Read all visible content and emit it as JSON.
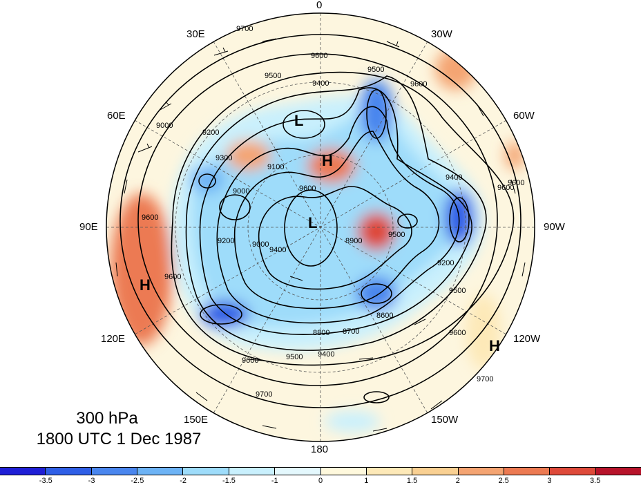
{
  "projection": "north-polar-stereographic",
  "field": {
    "level": "300 hPa",
    "time": "1800 UTC 1 Dec 1987"
  },
  "longitude_labels": {
    "lon_0": "0",
    "lon_30w": "30W",
    "lon_60w": "60W",
    "lon_90w": "90W",
    "lon_120w": "120W",
    "lon_150w": "150W",
    "lon_180": "180",
    "lon_150e": "150E",
    "lon_120e": "120E",
    "lon_90e": "90E",
    "lon_60e": "60E",
    "lon_30e": "30E"
  },
  "contour_labels": {
    "c1": "9700",
    "c2": "9600",
    "c3": "9500",
    "c4": "9400",
    "c5": "9500",
    "c6": "9600",
    "c7": "9600",
    "c8": "9400",
    "c9": "9400",
    "c10": "9300",
    "c11": "9000",
    "c12": "9200",
    "c13": "9000",
    "c14": "9100",
    "c15": "9600",
    "c16": "9600",
    "c17": "9000",
    "c18": "9200",
    "c19": "9500",
    "c20": "9600",
    "c21": "9700",
    "c22": "9600",
    "c23": "9500",
    "c24": "9400",
    "c25": "8800",
    "c26": "8700",
    "c27": "8600",
    "c28": "8900",
    "c29": "9200",
    "c30": "9500",
    "c31": "9600",
    "c32": "9700",
    "c33": "9600"
  },
  "pressure_centers": {
    "h1": "H",
    "h2": "H",
    "h3": "H",
    "l1": "L",
    "l2": "L"
  },
  "colors": {
    "neg35": "#1f1fd6",
    "neg3": "#2f5fe6",
    "neg25": "#4a86ee",
    "neg2": "#6db3f5",
    "neg15": "#9edcfa",
    "neg1": "#c9f0fd",
    "neg05": "#e4f8fd",
    "pos05": "#fff9dd",
    "pos1": "#fde9b8",
    "pos15": "#f9d092",
    "pos2": "#f4a472",
    "pos25": "#ec7a52",
    "pos3": "#de4a3a",
    "pos35": "#b7132a",
    "ocean": "#fdf6df"
  },
  "colorbar": {
    "labels": [
      "-3.5",
      "-3",
      "-2.5",
      "-2",
      "-1.5",
      "-1",
      "0",
      "1",
      "1.5",
      "2",
      "2.5",
      "3",
      "3.5"
    ],
    "colors": [
      "#1f1fd6",
      "#2f5fe6",
      "#4a86ee",
      "#6db3f5",
      "#9edcfa",
      "#c9f0fd",
      "#e4f8fd",
      "#fff9dd",
      "#fde9b8",
      "#f9d092",
      "#f4a472",
      "#ec7a52",
      "#de4a3a",
      "#b7132a"
    ]
  }
}
